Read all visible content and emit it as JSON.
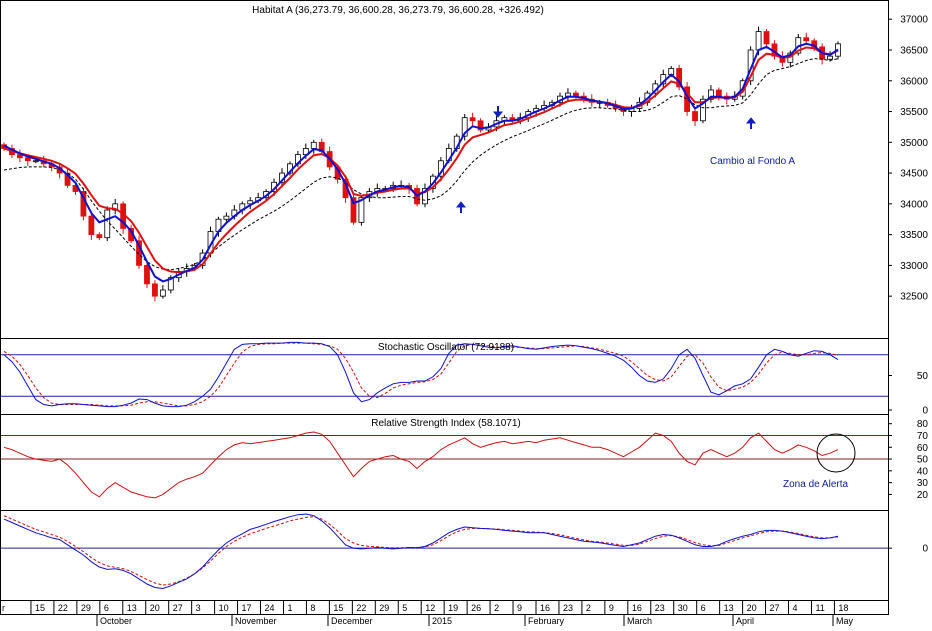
{
  "colors": {
    "frame": "#000000",
    "up_candle": "#ffffff",
    "down_candle": "#e01010",
    "fast_ma": "#1010d0",
    "slow_ma": "#e01010",
    "dotted_ma": "#000000",
    "h_line": "#2020a0",
    "rsi": "#d01010",
    "arrow": "#1020c0",
    "annotation_text": "#1020a0"
  },
  "chart_data": [
    {
      "type": "candlestick",
      "title": "Habitat A (36,273.79, 36,600.28, 36,273.79, 36,600.28, +326.492)",
      "ylim": [
        31950,
        37150
      ],
      "y_ticks": [
        32500,
        33000,
        33500,
        34000,
        34500,
        35000,
        35500,
        36000,
        36500,
        37000
      ],
      "close": [
        34900,
        34800,
        34750,
        34700,
        34700,
        34650,
        34600,
        34500,
        34300,
        34200,
        33800,
        33500,
        33450,
        33900,
        34000,
        33600,
        33400,
        33000,
        32700,
        32500,
        32600,
        32800,
        32900,
        32950,
        33000,
        33200,
        33550,
        33750,
        33800,
        33900,
        34000,
        34050,
        34100,
        34200,
        34350,
        34500,
        34650,
        34800,
        34900,
        35000,
        34850,
        34600,
        34400,
        34100,
        33700,
        34100,
        34200,
        34250,
        34250,
        34300,
        34300,
        34250,
        34000,
        34250,
        34450,
        34700,
        34900,
        35100,
        35400,
        35350,
        35200,
        35250,
        35350,
        35400,
        35350,
        35400,
        35500,
        35550,
        35600,
        35650,
        35750,
        35800,
        35750,
        35700,
        35650,
        35650,
        35600,
        35550,
        35500,
        35550,
        35650,
        35800,
        35950,
        36100,
        36200,
        35900,
        35500,
        35350,
        35700,
        35850,
        35750,
        35700,
        35750,
        36000,
        36500,
        36800,
        36600,
        36400,
        36300,
        36450,
        36700,
        36650,
        36550,
        36350,
        36400,
        36600
      ],
      "series": [
        {
          "values": [
            34950,
            34880,
            34820,
            34770,
            34730,
            34690,
            34650,
            34580,
            34470,
            34340,
            34100,
            33850,
            33700,
            33750,
            33800,
            33700,
            33560,
            33320,
            33060,
            32820,
            32740,
            32780,
            32850,
            32910,
            32960,
            33090,
            33330,
            33550,
            33690,
            33800,
            33900,
            33980,
            34050,
            34130,
            34240,
            34380,
            34520,
            34660,
            34780,
            34890,
            34870,
            34730,
            34560,
            34330,
            34010,
            34060,
            34140,
            34200,
            34230,
            34270,
            34290,
            34270,
            34130,
            34200,
            34330,
            34510,
            34710,
            34910,
            35150,
            35260,
            35230,
            35240,
            35300,
            35350,
            35350,
            35380,
            35440,
            35500,
            35550,
            35610,
            35680,
            35740,
            35740,
            35720,
            35680,
            35660,
            35630,
            35590,
            35540,
            35550,
            35610,
            35710,
            35840,
            35980,
            36100,
            35990,
            35750,
            35550,
            35630,
            35740,
            35740,
            35720,
            35740,
            35870,
            36190,
            36500,
            36550,
            36470,
            36380,
            36420,
            36560,
            36600,
            36570,
            36450,
            36420,
            36510
          ]
        },
        {
          "values": [
            34900,
            34860,
            34820,
            34790,
            34760,
            34730,
            34700,
            34650,
            34580,
            34490,
            34330,
            34140,
            33970,
            33930,
            33920,
            33840,
            33720,
            33530,
            33300,
            33080,
            32950,
            32900,
            32890,
            32900,
            32930,
            33020,
            33190,
            33370,
            33510,
            33640,
            33760,
            33870,
            33960,
            34050,
            34160,
            34290,
            34420,
            34560,
            34680,
            34790,
            34810,
            34740,
            34620,
            34440,
            34160,
            34130,
            34150,
            34180,
            34200,
            34230,
            34250,
            34250,
            34170,
            34190,
            34270,
            34400,
            34560,
            34740,
            34960,
            35080,
            35120,
            35160,
            35220,
            35280,
            35300,
            35340,
            35390,
            35440,
            35490,
            35550,
            35610,
            35670,
            35690,
            35690,
            35670,
            35660,
            35640,
            35610,
            35570,
            35560,
            35590,
            35660,
            35760,
            35880,
            35990,
            35950,
            35800,
            35650,
            35650,
            35720,
            35730,
            35720,
            35730,
            35820,
            36070,
            36340,
            36440,
            36420,
            36370,
            36390,
            36490,
            36540,
            36530,
            36450,
            36430,
            36490
          ]
        },
        {
          "values": [
            34550,
            34570,
            34590,
            34600,
            34600,
            34600,
            34590,
            34560,
            34500,
            34400,
            34240,
            34050,
            33880,
            33720,
            33590,
            33450,
            33310,
            33180,
            33060,
            32980,
            32940,
            32930,
            32950,
            32980,
            33020,
            33090,
            33190,
            33300,
            33400,
            33490,
            33580,
            33660,
            33740,
            33810,
            33880,
            33960,
            34050,
            34150,
            34250,
            34350,
            34420,
            34440,
            34420,
            34350,
            34230,
            34160,
            34120,
            34100,
            34100,
            34110,
            34120,
            34120,
            34080,
            34060,
            34080,
            34130,
            34230,
            34370,
            34540,
            34680,
            34790,
            34880,
            34960,
            35030,
            35090,
            35140,
            35190,
            35250,
            35300,
            35360,
            35420,
            35480,
            35520,
            35550,
            35560,
            35560,
            35550,
            35540,
            35520,
            35500,
            35500,
            35520,
            35570,
            35650,
            35740,
            35760,
            35700,
            35610,
            35560,
            35560,
            35580,
            35590,
            35600,
            35640,
            35770,
            35950,
            36100,
            36170,
            36200,
            36230,
            36280,
            36330,
            36360,
            36350,
            36330,
            36360
          ]
        }
      ],
      "annotations": {
        "label": "Cambio al Fondo A"
      }
    },
    {
      "type": "line",
      "title": "Stochastic Oscillator (72.9188)",
      "ylim": [
        0,
        100
      ],
      "y_ticks": [
        0,
        50
      ],
      "h_lines": [
        20,
        80
      ],
      "series": [
        {
          "values": [
            80,
            70,
            55,
            35,
            15,
            8,
            6,
            8,
            9,
            9,
            8,
            7,
            6,
            5,
            5,
            7,
            10,
            16,
            15,
            10,
            6,
            5,
            5,
            7,
            12,
            20,
            30,
            48,
            68,
            88,
            95,
            96,
            96,
            97,
            97,
            97,
            98,
            98,
            97,
            97,
            96,
            92,
            80,
            55,
            25,
            12,
            15,
            25,
            32,
            38,
            40,
            40,
            42,
            42,
            48,
            60,
            82,
            94,
            96,
            95,
            93,
            91,
            90,
            92,
            93,
            91,
            89,
            88,
            90,
            92,
            93,
            94,
            93,
            91,
            89,
            86,
            82,
            78,
            72,
            62,
            50,
            42,
            40,
            45,
            60,
            80,
            88,
            75,
            50,
            26,
            22,
            28,
            35,
            38,
            45,
            62,
            80,
            88,
            85,
            80,
            78,
            82,
            86,
            85,
            80,
            73
          ]
        },
        {
          "values": [
            85,
            78,
            66,
            50,
            32,
            18,
            10,
            8,
            8,
            8,
            8,
            8,
            7,
            6,
            6,
            6,
            7,
            10,
            12,
            12,
            10,
            8,
            6,
            6,
            8,
            12,
            20,
            32,
            50,
            68,
            84,
            92,
            95,
            96,
            96,
            97,
            97,
            97,
            97,
            96,
            95,
            93,
            88,
            75,
            55,
            32,
            20,
            18,
            24,
            32,
            36,
            38,
            40,
            41,
            44,
            52,
            68,
            85,
            93,
            95,
            94,
            93,
            91,
            91,
            91,
            91,
            90,
            89,
            89,
            90,
            91,
            92,
            93,
            92,
            90,
            88,
            85,
            82,
            78,
            70,
            60,
            50,
            44,
            42,
            48,
            63,
            78,
            80,
            68,
            48,
            33,
            28,
            30,
            33,
            40,
            52,
            68,
            80,
            84,
            82,
            80,
            80,
            82,
            83,
            82,
            79
          ]
        }
      ]
    },
    {
      "type": "line",
      "title": "Relative Strength Index (58.1071)",
      "ylim": [
        11,
        84
      ],
      "y_ticks": [
        20,
        30,
        40,
        50,
        60,
        70,
        80
      ],
      "h_lines": [
        50,
        70
      ],
      "series": [
        {
          "values": [
            60,
            58,
            55,
            52,
            50,
            49,
            48,
            50,
            45,
            38,
            30,
            22,
            18,
            25,
            30,
            26,
            22,
            20,
            18,
            17,
            20,
            25,
            30,
            33,
            35,
            38,
            45,
            52,
            58,
            62,
            64,
            63,
            64,
            65,
            66,
            67,
            68,
            70,
            72,
            73,
            71,
            65,
            55,
            45,
            35,
            42,
            48,
            50,
            52,
            53,
            50,
            48,
            42,
            48,
            52,
            58,
            62,
            65,
            68,
            63,
            60,
            62,
            64,
            65,
            63,
            64,
            65,
            64,
            66,
            67,
            68,
            66,
            64,
            62,
            60,
            60,
            58,
            55,
            52,
            56,
            60,
            66,
            72,
            70,
            65,
            55,
            48,
            45,
            55,
            58,
            55,
            52,
            55,
            60,
            68,
            72,
            65,
            58,
            55,
            58,
            62,
            60,
            57,
            53,
            55,
            58
          ]
        }
      ],
      "annotations": {
        "label": "Zona de Alerta"
      }
    },
    {
      "type": "line",
      "ylim": [
        -1.4,
        1.0
      ],
      "y_ticks": [
        0
      ],
      "h_lines": [
        0
      ],
      "series": [
        {
          "values": [
            0.85,
            0.75,
            0.65,
            0.55,
            0.45,
            0.38,
            0.3,
            0.25,
            0.1,
            -0.05,
            -0.2,
            -0.4,
            -0.55,
            -0.62,
            -0.6,
            -0.65,
            -0.75,
            -0.9,
            -1.05,
            -1.15,
            -1.18,
            -1.1,
            -1.0,
            -0.9,
            -0.75,
            -0.55,
            -0.3,
            -0.05,
            0.15,
            0.3,
            0.42,
            0.55,
            0.62,
            0.7,
            0.78,
            0.85,
            0.92,
            0.98,
            1.0,
            0.95,
            0.8,
            0.6,
            0.35,
            0.1,
            0.0,
            -0.02,
            0.0,
            0.02,
            0.0,
            -0.02,
            0.0,
            0.02,
            0.01,
            0.05,
            0.15,
            0.3,
            0.45,
            0.55,
            0.62,
            0.6,
            0.58,
            0.57,
            0.55,
            0.52,
            0.5,
            0.48,
            0.45,
            0.45,
            0.45,
            0.4,
            0.35,
            0.3,
            0.25,
            0.2,
            0.18,
            0.16,
            0.12,
            0.08,
            0.05,
            0.1,
            0.15,
            0.25,
            0.35,
            0.4,
            0.38,
            0.3,
            0.2,
            0.1,
            0.05,
            0.05,
            0.1,
            0.2,
            0.28,
            0.35,
            0.4,
            0.48,
            0.52,
            0.52,
            0.5,
            0.45,
            0.4,
            0.35,
            0.3,
            0.28,
            0.3,
            0.35
          ]
        },
        {
          "values": [
            0.95,
            0.85,
            0.75,
            0.65,
            0.55,
            0.48,
            0.4,
            0.32,
            0.2,
            0.05,
            -0.1,
            -0.28,
            -0.42,
            -0.52,
            -0.56,
            -0.6,
            -0.68,
            -0.8,
            -0.92,
            -1.02,
            -1.08,
            -1.05,
            -0.98,
            -0.88,
            -0.75,
            -0.58,
            -0.38,
            -0.15,
            0.05,
            0.2,
            0.32,
            0.42,
            0.5,
            0.58,
            0.65,
            0.72,
            0.8,
            0.85,
            0.9,
            0.92,
            0.85,
            0.7,
            0.5,
            0.28,
            0.15,
            0.08,
            0.05,
            0.04,
            0.02,
            0.01,
            0.01,
            0.02,
            0.02,
            0.04,
            0.1,
            0.22,
            0.36,
            0.48,
            0.55,
            0.58,
            0.58,
            0.57,
            0.56,
            0.54,
            0.52,
            0.5,
            0.48,
            0.47,
            0.46,
            0.43,
            0.39,
            0.34,
            0.29,
            0.24,
            0.2,
            0.18,
            0.15,
            0.12,
            0.08,
            0.08,
            0.12,
            0.2,
            0.28,
            0.35,
            0.37,
            0.33,
            0.25,
            0.16,
            0.1,
            0.07,
            0.08,
            0.15,
            0.22,
            0.3,
            0.36,
            0.43,
            0.48,
            0.5,
            0.5,
            0.47,
            0.43,
            0.38,
            0.33,
            0.3,
            0.3,
            0.33
          ]
        }
      ]
    }
  ],
  "x_axis": {
    "ticks": [
      "r",
      "15",
      "22",
      "29",
      "6",
      "13",
      "20",
      "27",
      "3",
      "10",
      "17",
      "24",
      "1",
      "8",
      "15",
      "22",
      "29",
      "5",
      "12",
      "19",
      "26",
      "2",
      "9",
      "16",
      "23",
      "2",
      "9",
      "16",
      "23",
      "30",
      "6",
      "13",
      "20",
      "27",
      "4",
      "11",
      "18"
    ],
    "months": [
      "October",
      "November",
      "December",
      "2015",
      "February",
      "March",
      "April",
      "May"
    ]
  }
}
